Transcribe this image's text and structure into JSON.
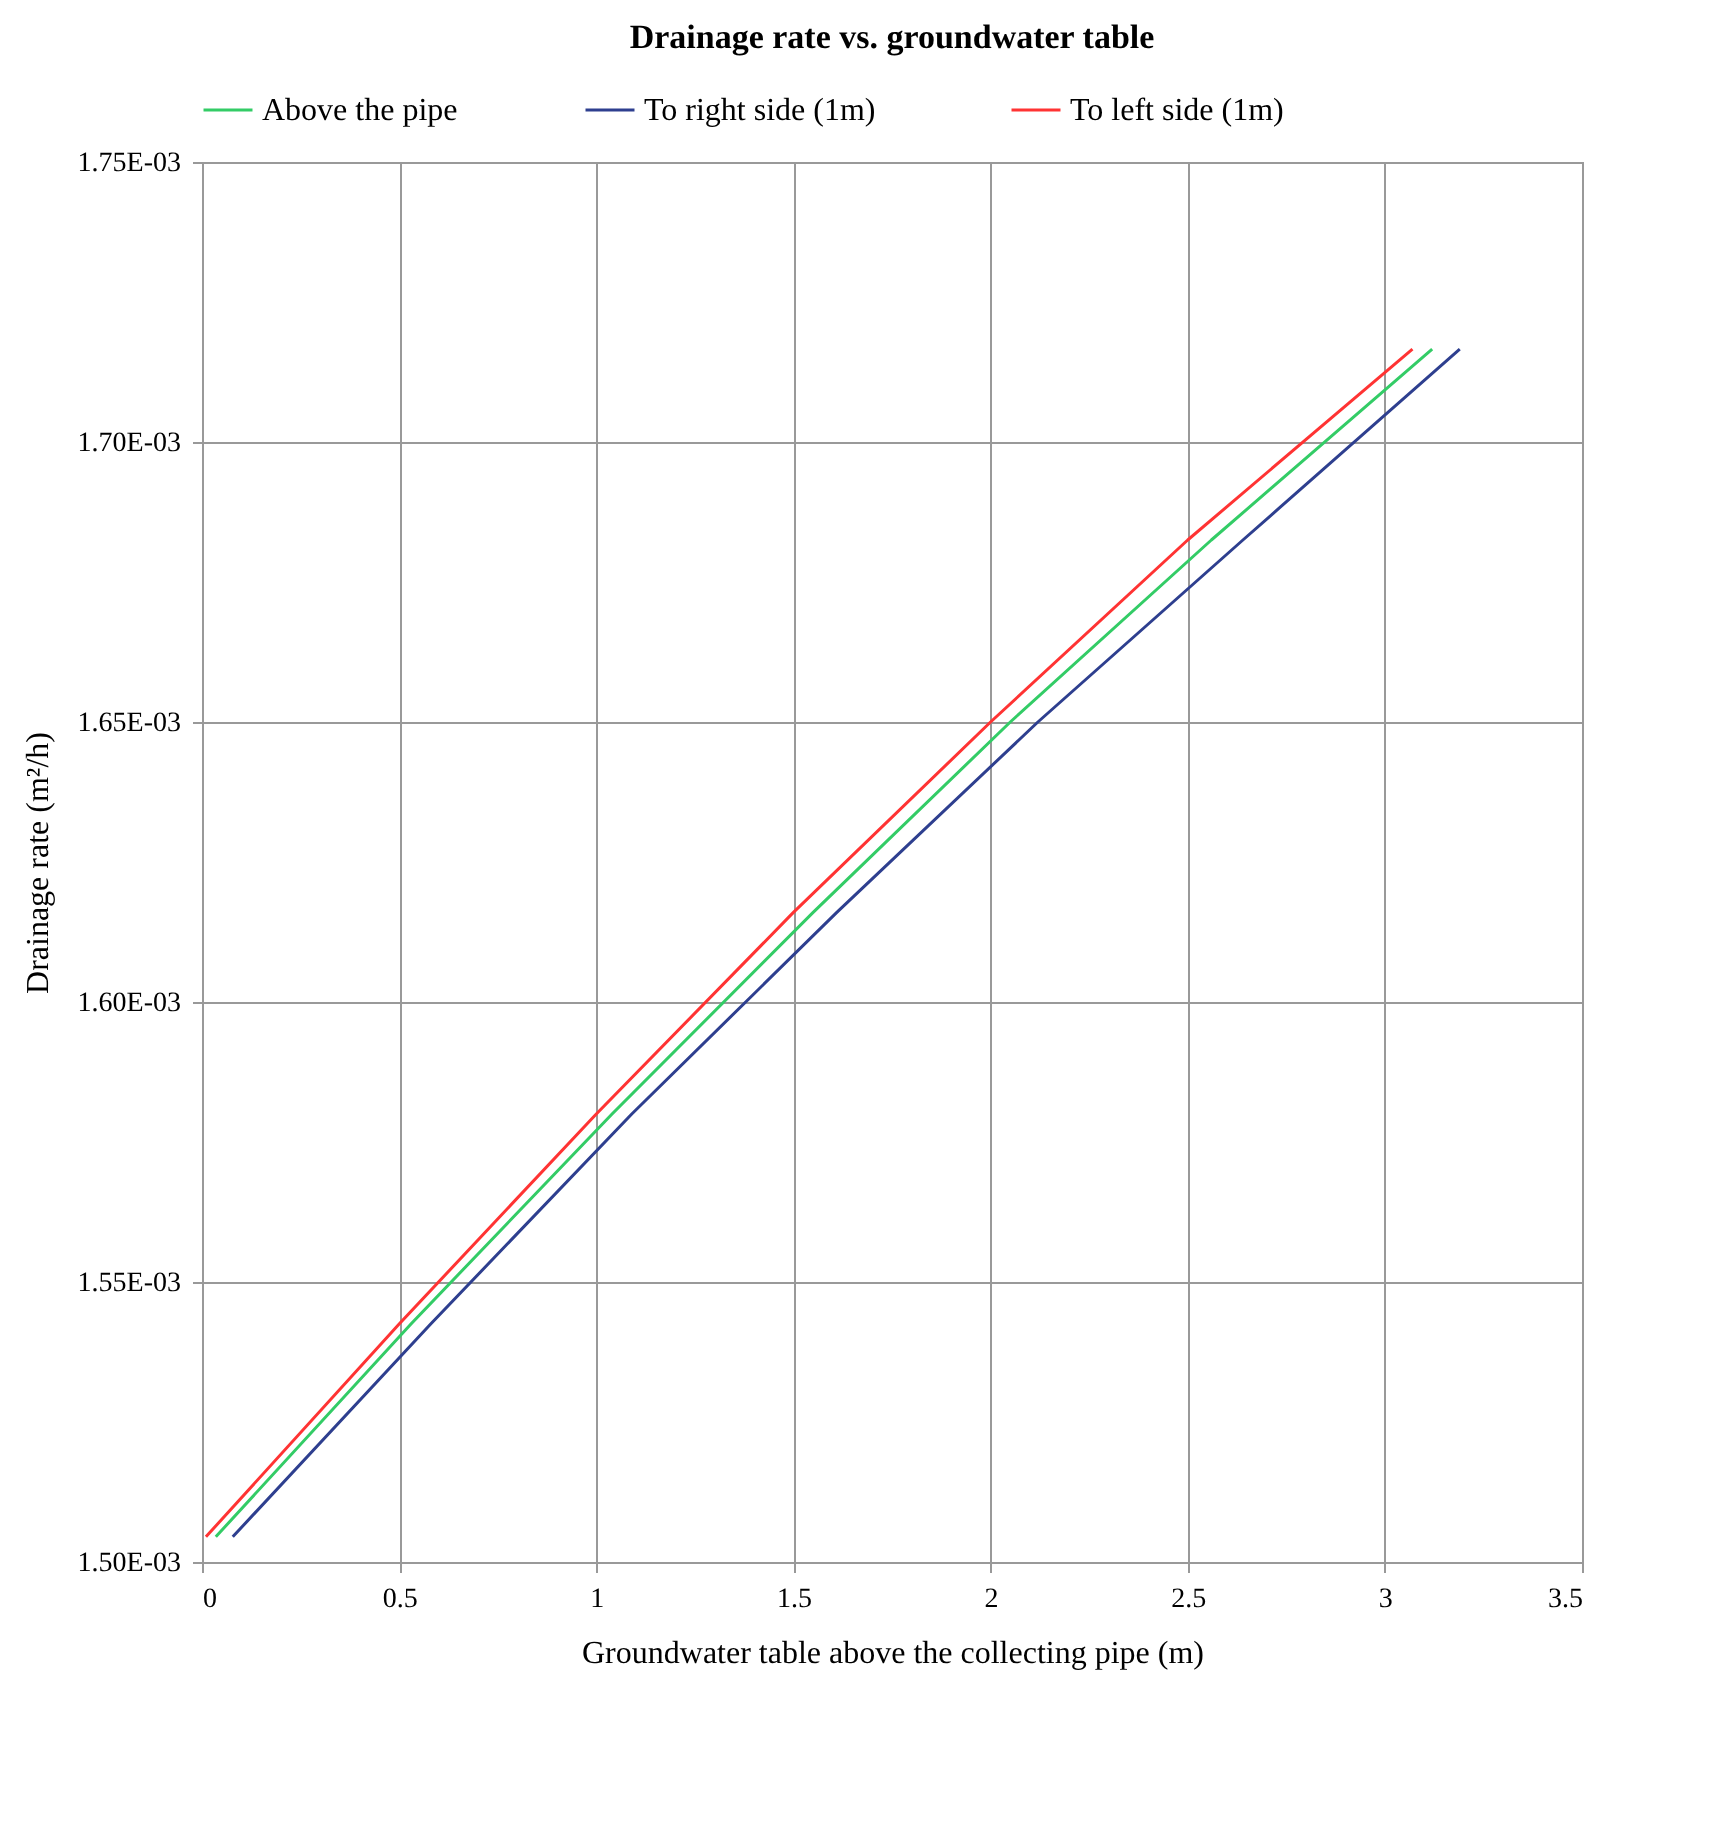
{
  "chart_data": {
    "type": "line",
    "title": "Drainage rate vs. groundwater table",
    "xlabel": "Groundwater table above the collecting pipe (m)",
    "ylabel": "Drainage rate (m²/h)",
    "xlim": [
      0,
      3.5
    ],
    "xticks": [
      0,
      0.5,
      1,
      1.5,
      2,
      2.5,
      3,
      3.5
    ],
    "ylim": [
      0.0015,
      0.00175
    ],
    "yticks": [
      {
        "value": 0.0015,
        "label": "1.50E-03"
      },
      {
        "value": 0.00155,
        "label": "1.55E-03"
      },
      {
        "value": 0.0016,
        "label": "1.60E-03"
      },
      {
        "value": 0.00165,
        "label": "1.65E-03"
      },
      {
        "value": 0.0017,
        "label": "1.70E-03"
      },
      {
        "value": 0.00175,
        "label": "1.75E-03"
      }
    ],
    "grid": true,
    "legend": "top",
    "marker": "none",
    "line_style": "solid",
    "series": [
      {
        "name": "Above the pipe",
        "color": "#33cc66",
        "x": [
          0.035,
          0.53,
          1.04,
          1.55,
          2.05,
          2.56,
          3.12
        ],
        "values": [
          0.0015045,
          0.0015425,
          0.00158,
          0.001616,
          0.00165,
          0.0016825,
          0.0017166
        ]
      },
      {
        "name": "To right  side (1m)",
        "color": "#2e3f8f",
        "x": [
          0.078,
          0.58,
          1.09,
          1.61,
          2.12,
          2.64,
          3.19
        ],
        "values": [
          0.0015045,
          0.0015425,
          0.00158,
          0.001616,
          0.00165,
          0.0016825,
          0.0017166
        ]
      },
      {
        "name": "To left side (1m)",
        "color": "#ff3333",
        "x": [
          0.01,
          0.5,
          1,
          1.5,
          2,
          2.5,
          3.07
        ],
        "values": [
          0.0015045,
          0.0015425,
          0.00158,
          0.001616,
          0.00165,
          0.0016825,
          0.0017166
        ]
      }
    ]
  }
}
